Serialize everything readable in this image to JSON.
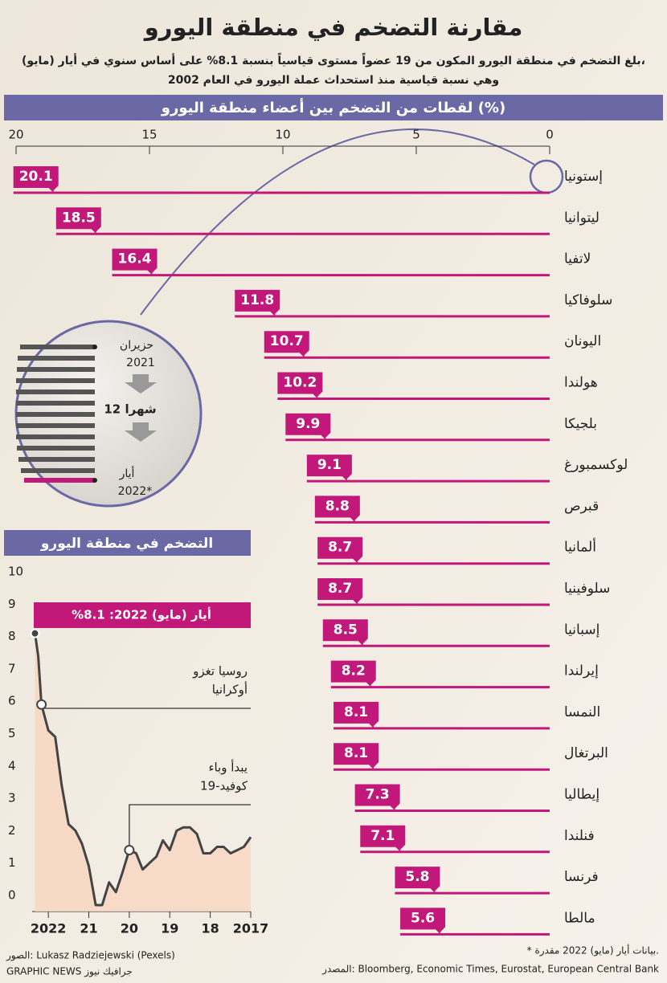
{
  "header": {
    "title": "مقارنة التضخم في منطقة اليورو",
    "subtitle": [
      "بلغ التضخم في منطقة اليورو المكون من 19 عضواً مستوى قياسياً بنسبة 8.1% على أساس سنوي في أيار (مايو)،",
      "وهي نسبة قياسية منذ استحداث عملة اليورو في العام 2002"
    ]
  },
  "chart_data": [
    {
      "type": "bar",
      "orientation": "horizontal",
      "title": "لقطات من التضخم بين أعضاء منطقة اليورو (%)",
      "categories": [
        "إستونيا",
        "ليتوانيا",
        "لاتفيا",
        "سلوفاكيا",
        "اليونان",
        "هولندا",
        "بلجيكا",
        "لوكسمبورغ",
        "قبرص",
        "ألمانيا",
        "سلوفينيا",
        "إسبانيا",
        "إيرلندا",
        "النمسا",
        "البرتغال",
        "إيطاليا",
        "فنلندا",
        "فرنسا",
        "مالطا"
      ],
      "values": [
        20.1,
        18.5,
        16.4,
        11.8,
        10.7,
        10.2,
        9.9,
        9.1,
        8.8,
        8.7,
        8.7,
        8.5,
        8.2,
        8.1,
        8.1,
        7.3,
        7.1,
        5.8,
        5.6
      ],
      "color": "#c2187a",
      "xlim": [
        20,
        0
      ],
      "xticks": [
        20,
        15,
        10,
        5,
        0
      ]
    },
    {
      "type": "line",
      "title": "التضخم في منطقة اليورو",
      "x": [
        2017.0,
        2017.17,
        2017.33,
        2017.5,
        2017.67,
        2017.83,
        2018.0,
        2018.17,
        2018.33,
        2018.5,
        2018.67,
        2018.83,
        2019.0,
        2019.17,
        2019.33,
        2019.5,
        2019.67,
        2019.83,
        2020.0,
        2020.17,
        2020.33,
        2020.5,
        2020.67,
        2020.83,
        2021.0,
        2021.17,
        2021.33,
        2021.5,
        2021.67,
        2021.83,
        2022.0,
        2022.17,
        2022.25,
        2022.33
      ],
      "series": [
        {
          "color": "#444444",
          "values": [
            1.8,
            1.5,
            1.4,
            1.3,
            1.5,
            1.5,
            1.3,
            1.3,
            1.9,
            2.1,
            2.1,
            2.0,
            1.4,
            1.7,
            1.2,
            1.0,
            0.8,
            1.3,
            1.4,
            0.7,
            0.1,
            0.4,
            -0.3,
            -0.3,
            0.9,
            1.6,
            2.0,
            2.2,
            3.4,
            4.9,
            5.1,
            5.9,
            7.4,
            8.1
          ]
        }
      ],
      "xlim": [
        2022.4,
        2017
      ],
      "xticks": [
        2022,
        {
          "value": 2021,
          "label": "21"
        },
        {
          "value": 2020,
          "label": "20"
        },
        {
          "value": 2019,
          "label": "19"
        },
        {
          "value": 2018,
          "label": "18"
        },
        2017
      ],
      "ylim": [
        -0.5,
        10.5
      ],
      "yticks": [
        0,
        1,
        2,
        3,
        4,
        5,
        6,
        7,
        8,
        9,
        10
      ],
      "grid": false,
      "annotations": [
        {
          "text": [
            "أيار (مايو) 2022: 8.1%"
          ],
          "x": 2022.33,
          "y": 8.1
        },
        {
          "text": [
            "روسيا تغزو",
            "أوكرانيا"
          ],
          "x": 2022.17,
          "y": 5.9
        },
        {
          "text": [
            "يبدأ وباء",
            "كوفيد-19"
          ],
          "x": 2020.0,
          "y": 1.4
        }
      ]
    }
  ],
  "inset": {
    "start": [
      "حزيران",
      "2021"
    ],
    "span": "12 شهرا",
    "end": [
      "أيار",
      "2022*"
    ]
  },
  "footer": {
    "note": "* بيانات أيار (مايو) 2022 مقدرة.",
    "source": "المصدر: Bloomberg, Economic Times, Eurostat, European Central Bank",
    "photo": "الصور: Lukasz Radziejewski (Pexels)",
    "credit": "GRAPHIC NEWS جرافيك نيوز"
  }
}
